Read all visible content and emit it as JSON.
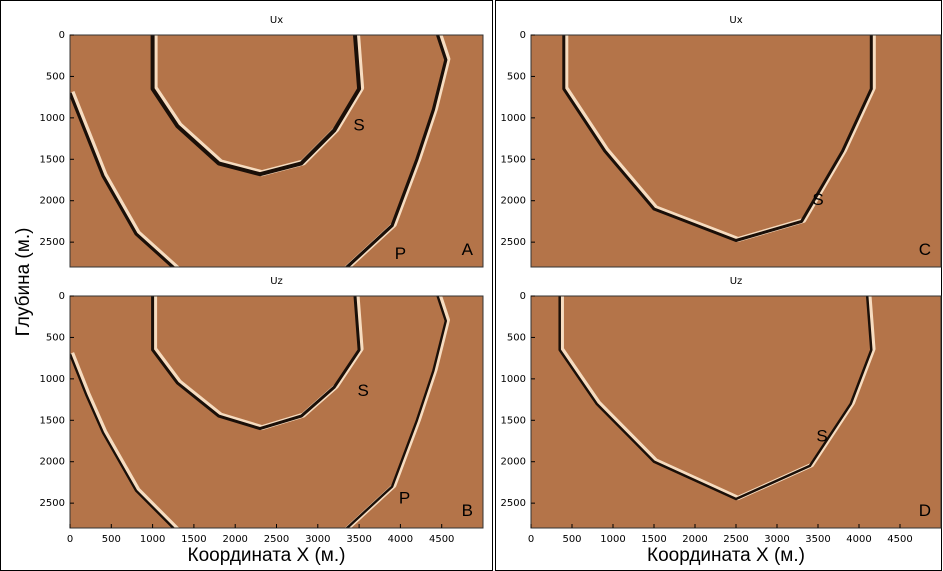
{
  "y_label": "Глубина (м.)",
  "chart_data": [
    {
      "type": "image",
      "title": "Ux",
      "panel_label": "A",
      "annotations": [
        "S",
        "P"
      ],
      "xlim": [
        0,
        5000
      ],
      "ylim": [
        0,
        2800
      ],
      "y_inverted": true,
      "yticks": [
        0,
        500,
        1000,
        1500,
        2000,
        2500
      ],
      "color": "#b47449"
    },
    {
      "type": "image",
      "title": "Uz",
      "panel_label": "B",
      "annotations": [
        "S",
        "P"
      ],
      "x_label": "Координата X (м.)",
      "xlim": [
        0,
        5000
      ],
      "ylim": [
        0,
        2800
      ],
      "y_inverted": true,
      "xticks": [
        0,
        500,
        1000,
        1500,
        2000,
        2500,
        3000,
        3500,
        4000,
        4500
      ],
      "yticks": [
        0,
        500,
        1000,
        1500,
        2000,
        2500
      ],
      "color": "#b47449"
    },
    {
      "type": "image",
      "title": "Ux",
      "panel_label": "C",
      "annotations": [
        "S"
      ],
      "xlim": [
        0,
        5000
      ],
      "ylim": [
        0,
        2800
      ],
      "y_inverted": true,
      "yticks": [
        0,
        500,
        1000,
        1500,
        2000,
        2500
      ],
      "color": "#b47449"
    },
    {
      "type": "image",
      "title": "Uz",
      "panel_label": "D",
      "annotations": [
        "S"
      ],
      "x_label": "Координата X (м.)",
      "xlim": [
        0,
        5000
      ],
      "ylim": [
        0,
        2800
      ],
      "y_inverted": true,
      "xticks": [
        0,
        500,
        1000,
        1500,
        2000,
        2500,
        3000,
        3500,
        4000,
        4500
      ],
      "yticks": [
        0,
        500,
        1000,
        1500,
        2000,
        2500
      ],
      "color": "#b47449"
    }
  ]
}
